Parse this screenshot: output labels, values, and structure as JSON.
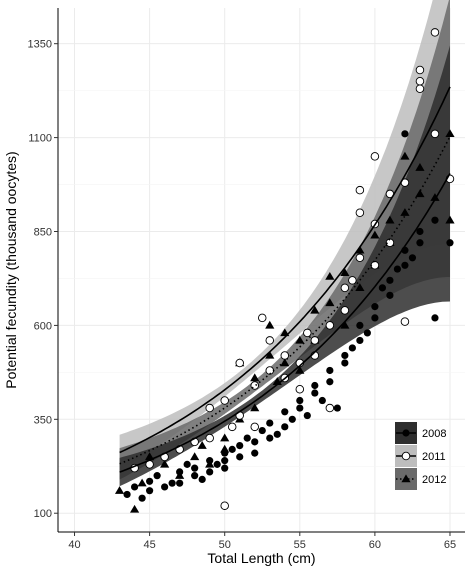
{
  "chart_data": {
    "type": "scatter",
    "title": "",
    "xlabel": "Total Length (cm)",
    "ylabel": "Potential fecundity (thousand oocytes)",
    "xlim": [
      38.9,
      66
    ],
    "ylim": [
      50,
      1445
    ],
    "x_ticks": [
      40,
      45,
      50,
      55,
      60,
      65
    ],
    "y_ticks": [
      100,
      350,
      600,
      850,
      1100,
      1350
    ],
    "grid": true,
    "legend_position": "bottom-right",
    "colors": {
      "panel_bg": "#ffffff",
      "grid": "#ebebeb",
      "band_2008": "#2e2e2e",
      "band_2011": "#bdbdbd",
      "band_2012": "#6a6a6a",
      "line_2008": "#000000",
      "line_2011": "#000000",
      "line_2012": "#000000"
    },
    "series": [
      {
        "name": "2008",
        "marker": "filled-circle",
        "line_style": "solid",
        "fit": {
          "a": 9.78,
          "b": 0.07126
        },
        "points": [
          [
            43.5,
            150
          ],
          [
            44,
            170
          ],
          [
            44.5,
            140
          ],
          [
            45,
            185
          ],
          [
            45,
            160
          ],
          [
            45.5,
            200
          ],
          [
            46,
            170
          ],
          [
            46.5,
            180
          ],
          [
            47,
            210
          ],
          [
            47,
            180
          ],
          [
            47.5,
            230
          ],
          [
            48,
            200
          ],
          [
            48,
            220
          ],
          [
            48.5,
            190
          ],
          [
            49,
            240
          ],
          [
            49,
            210
          ],
          [
            49.5,
            230
          ],
          [
            50,
            260
          ],
          [
            50,
            240
          ],
          [
            50,
            220
          ],
          [
            50.5,
            270
          ],
          [
            51,
            280
          ],
          [
            51,
            250
          ],
          [
            51.5,
            300
          ],
          [
            52,
            290
          ],
          [
            52,
            260
          ],
          [
            52.5,
            320
          ],
          [
            53,
            300
          ],
          [
            53,
            340
          ],
          [
            53.5,
            310
          ],
          [
            54,
            330
          ],
          [
            54,
            370
          ],
          [
            54.5,
            350
          ],
          [
            55,
            380
          ],
          [
            55,
            400
          ],
          [
            55.5,
            360
          ],
          [
            56,
            420
          ],
          [
            56,
            440
          ],
          [
            56.5,
            400
          ],
          [
            57,
            450
          ],
          [
            57,
            480
          ],
          [
            57.5,
            380
          ],
          [
            58,
            500
          ],
          [
            58,
            520
          ],
          [
            58.5,
            540
          ],
          [
            59,
            560
          ],
          [
            59,
            600
          ],
          [
            59.5,
            580
          ],
          [
            60,
            620
          ],
          [
            60,
            650
          ],
          [
            60.5,
            700
          ],
          [
            61,
            680
          ],
          [
            61,
            720
          ],
          [
            61.5,
            750
          ],
          [
            62,
            760
          ],
          [
            62,
            800
          ],
          [
            62.5,
            780
          ],
          [
            63,
            820
          ],
          [
            63,
            850
          ],
          [
            64,
            880
          ],
          [
            65,
            820
          ],
          [
            64,
            620
          ],
          [
            62,
            1110
          ]
        ]
      },
      {
        "name": "2011",
        "marker": "open-circle",
        "line_style": "solid",
        "fit": {
          "a": 12.6,
          "b": 0.07054
        },
        "points": [
          [
            44,
            220
          ],
          [
            45,
            230
          ],
          [
            46,
            250
          ],
          [
            47,
            270
          ],
          [
            48,
            290
          ],
          [
            49,
            380
          ],
          [
            49,
            300
          ],
          [
            50,
            400
          ],
          [
            50,
            120
          ],
          [
            50.5,
            330
          ],
          [
            51,
            500
          ],
          [
            51,
            360
          ],
          [
            52,
            440
          ],
          [
            52,
            330
          ],
          [
            52.5,
            620
          ],
          [
            53,
            560
          ],
          [
            53,
            480
          ],
          [
            54,
            520
          ],
          [
            54,
            460
          ],
          [
            55,
            500
          ],
          [
            55,
            430
          ],
          [
            55.5,
            580
          ],
          [
            56,
            560
          ],
          [
            56,
            520
          ],
          [
            57,
            600
          ],
          [
            57,
            380
          ],
          [
            58,
            700
          ],
          [
            58,
            640
          ],
          [
            58.5,
            720
          ],
          [
            59,
            960
          ],
          [
            59,
            900
          ],
          [
            59,
            780
          ],
          [
            60,
            1050
          ],
          [
            60,
            870
          ],
          [
            60,
            760
          ],
          [
            61,
            950
          ],
          [
            61,
            820
          ],
          [
            62,
            980
          ],
          [
            62,
            610
          ],
          [
            63,
            1280
          ],
          [
            63,
            1250
          ],
          [
            63,
            1230
          ],
          [
            64,
            1380
          ],
          [
            64,
            1110
          ],
          [
            65,
            990
          ]
        ]
      },
      {
        "name": "2012",
        "marker": "filled-triangle",
        "line_style": "dotted",
        "fit": {
          "a": 10.95,
          "b": 0.07096
        },
        "points": [
          [
            43,
            160
          ],
          [
            44,
            110
          ],
          [
            44.5,
            180
          ],
          [
            45,
            250
          ],
          [
            46,
            230
          ],
          [
            47,
            200
          ],
          [
            48,
            250
          ],
          [
            48.5,
            280
          ],
          [
            49,
            230
          ],
          [
            50,
            300
          ],
          [
            50,
            270
          ],
          [
            51,
            500
          ],
          [
            51,
            350
          ],
          [
            52,
            380
          ],
          [
            52,
            460
          ],
          [
            53,
            600
          ],
          [
            53,
            520
          ],
          [
            53.5,
            450
          ],
          [
            54,
            580
          ],
          [
            54,
            500
          ],
          [
            55,
            560
          ],
          [
            55,
            480
          ],
          [
            56,
            640
          ],
          [
            56,
            560
          ],
          [
            57,
            730
          ],
          [
            57,
            660
          ],
          [
            58,
            740
          ],
          [
            58,
            600
          ],
          [
            59,
            800
          ],
          [
            59,
            700
          ],
          [
            60,
            840
          ],
          [
            60,
            760
          ],
          [
            61,
            880
          ],
          [
            61,
            820
          ],
          [
            62,
            900
          ],
          [
            62,
            1050
          ],
          [
            63,
            1020
          ],
          [
            63,
            950
          ],
          [
            64,
            940
          ],
          [
            65,
            1110
          ],
          [
            65,
            880
          ]
        ]
      }
    ]
  }
}
